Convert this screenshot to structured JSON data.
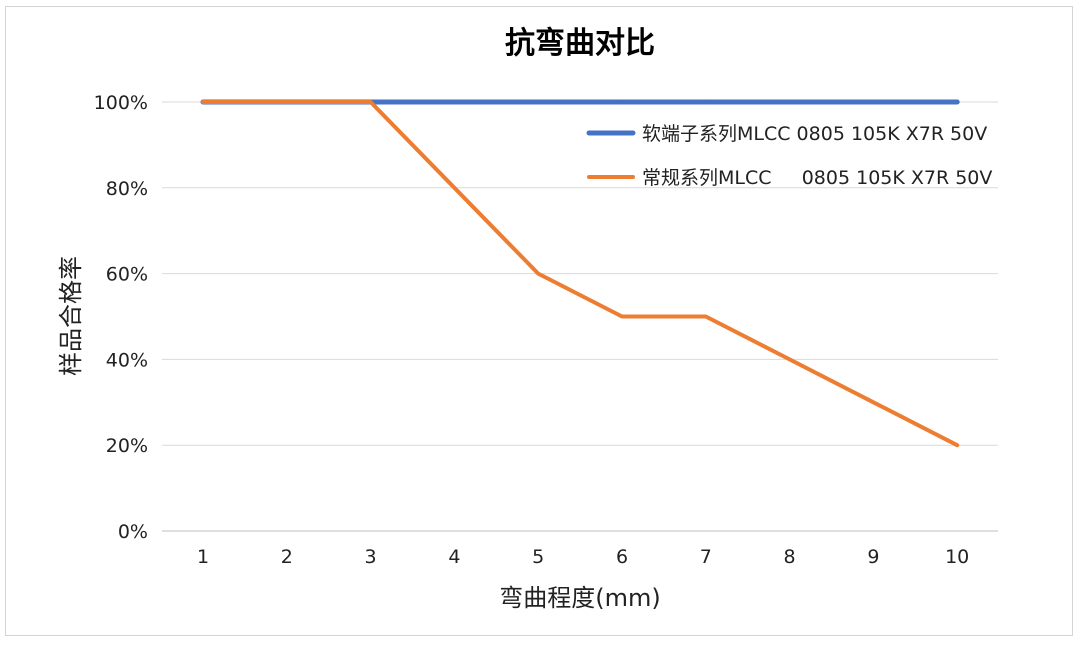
{
  "chart_data": {
    "type": "line",
    "title": "抗弯曲对比",
    "xlabel": "弯曲程度(mm)",
    "ylabel": "样品合格率",
    "categories": [
      "1",
      "2",
      "3",
      "4",
      "5",
      "6",
      "7",
      "8",
      "9",
      "10"
    ],
    "y_ticks": [
      "0%",
      "20%",
      "40%",
      "60%",
      "80%",
      "100%"
    ],
    "ylim": [
      0,
      100
    ],
    "grid": true,
    "legend_position": "top-right",
    "series": [
      {
        "name": "软端子系列MLCC 0805 105K X7R 50V",
        "color": "#4472C4",
        "values": [
          100,
          100,
          100,
          100,
          100,
          100,
          100,
          100,
          100,
          100
        ]
      },
      {
        "name": "常规系列MLCC     0805 105K X7R 50V",
        "color": "#ED7D31",
        "values": [
          100,
          100,
          100,
          80,
          60,
          50,
          50,
          40,
          30,
          20
        ]
      }
    ]
  }
}
